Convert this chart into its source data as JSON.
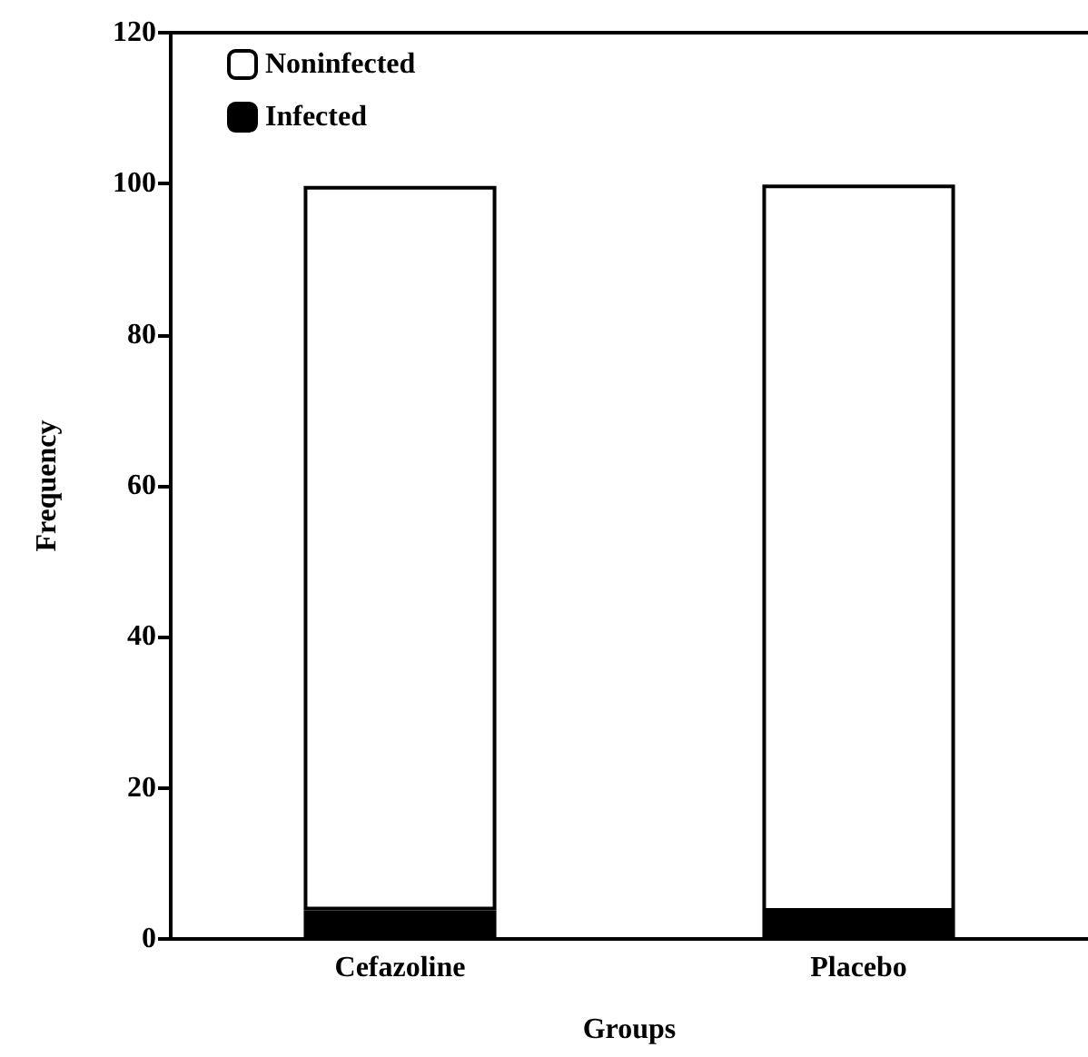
{
  "chart_data": {
    "type": "bar",
    "xlabel": "Groups",
    "ylabel": "Frequency",
    "categories": [
      "Cefazoline",
      "Placebo"
    ],
    "stacked": true,
    "series": [
      {
        "name": "Infected",
        "color": "#000000",
        "values": [
          3.8,
          3.6
        ]
      },
      {
        "name": "Noninfected",
        "color": "#ffffff",
        "values": [
          95.9,
          96.3
        ]
      }
    ],
    "ylim": [
      0,
      120
    ],
    "yticks": [
      0,
      20,
      40,
      60,
      80,
      100,
      120
    ],
    "ref_lines": [
      {
        "axis": "y",
        "value": 120,
        "color": "#000000"
      }
    ],
    "grid": false,
    "legend": "top left"
  }
}
